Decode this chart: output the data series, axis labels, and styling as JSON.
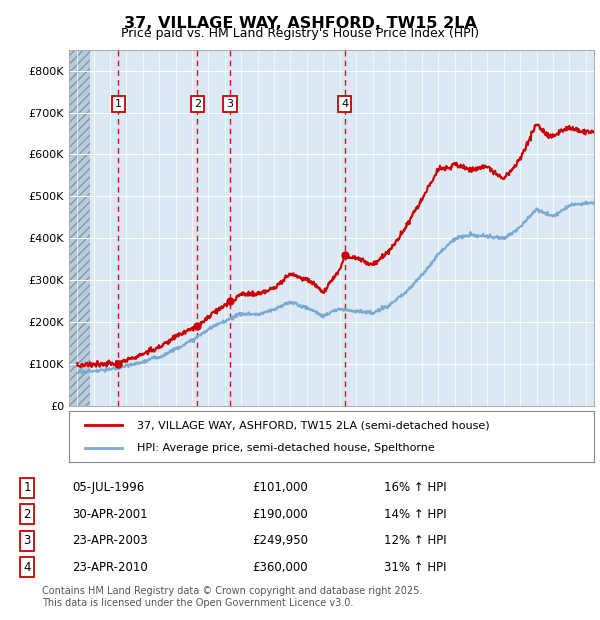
{
  "title": "37, VILLAGE WAY, ASHFORD, TW15 2LA",
  "subtitle": "Price paid vs. HM Land Registry's House Price Index (HPI)",
  "ylim": [
    0,
    850000
  ],
  "yticks": [
    0,
    100000,
    200000,
    300000,
    400000,
    500000,
    600000,
    700000,
    800000
  ],
  "ytick_labels": [
    "£0",
    "£100K",
    "£200K",
    "£300K",
    "£400K",
    "£500K",
    "£600K",
    "£700K",
    "£800K"
  ],
  "background_color": "#ffffff",
  "plot_bg_color": "#dce9f5",
  "hatch_color": "#c0cfd8",
  "grid_color": "#ffffff",
  "sale_color": "#cc0000",
  "hpi_color": "#7aaad0",
  "sale_label": "37, VILLAGE WAY, ASHFORD, TW15 2LA (semi-detached house)",
  "hpi_label": "HPI: Average price, semi-detached house, Spelthorne",
  "sales": [
    {
      "num": 1,
      "date_x": 1996.5,
      "price": 101000,
      "date_str": "05-JUL-1996",
      "pct": "16%"
    },
    {
      "num": 2,
      "date_x": 2001.33,
      "price": 190000,
      "date_str": "30-APR-2001",
      "pct": "14%"
    },
    {
      "num": 3,
      "date_x": 2003.31,
      "price": 249950,
      "date_str": "23-APR-2003",
      "pct": "12%"
    },
    {
      "num": 4,
      "date_x": 2010.31,
      "price": 360000,
      "date_str": "23-APR-2010",
      "pct": "31%"
    }
  ],
  "footer": "Contains HM Land Registry data © Crown copyright and database right 2025.\nThis data is licensed under the Open Government Licence v3.0.",
  "xlim_start": 1993.5,
  "xlim_end": 2025.5,
  "hatch_end": 1994.75,
  "hpi_curve": {
    "1994.0": 80000,
    "1995.0": 84000,
    "1996.0": 88000,
    "1997.0": 96000,
    "1998.0": 105000,
    "1999.0": 118000,
    "2000.0": 138000,
    "2001.0": 158000,
    "2002.0": 185000,
    "2003.0": 205000,
    "2004.0": 222000,
    "2005.0": 220000,
    "2006.0": 232000,
    "2007.0": 252000,
    "2008.0": 238000,
    "2009.0": 220000,
    "2010.0": 238000,
    "2011.0": 233000,
    "2012.0": 228000,
    "2013.0": 248000,
    "2014.0": 278000,
    "2015.0": 318000,
    "2016.0": 368000,
    "2017.0": 405000,
    "2018.0": 415000,
    "2019.0": 412000,
    "2020.0": 408000,
    "2021.0": 435000,
    "2022.0": 478000,
    "2023.0": 462000,
    "2024.0": 488000,
    "2025.5": 495000
  },
  "sale_curve": {
    "1994.0": 96000,
    "1995.0": 97000,
    "1996.0": 98500,
    "1996.5": 101000,
    "1997.0": 108000,
    "1998.0": 125000,
    "1999.0": 142000,
    "2000.0": 168000,
    "2001.0": 188000,
    "2001.33": 190000,
    "2002.0": 218000,
    "2003.0": 245000,
    "2003.31": 249950,
    "2004.0": 272000,
    "2005.0": 268000,
    "2006.0": 282000,
    "2007.0": 318000,
    "2008.0": 305000,
    "2009.0": 272000,
    "2010.0": 330000,
    "2010.31": 360000,
    "2011.0": 355000,
    "2012.0": 342000,
    "2013.0": 378000,
    "2014.0": 432000,
    "2015.0": 500000,
    "2016.0": 570000,
    "2017.0": 580000,
    "2018.0": 568000,
    "2019.0": 575000,
    "2020.0": 545000,
    "2021.0": 590000,
    "2022.0": 672000,
    "2022.5": 652000,
    "2023.0": 645000,
    "2024.0": 668000,
    "2025.0": 658000,
    "2025.5": 660000
  }
}
